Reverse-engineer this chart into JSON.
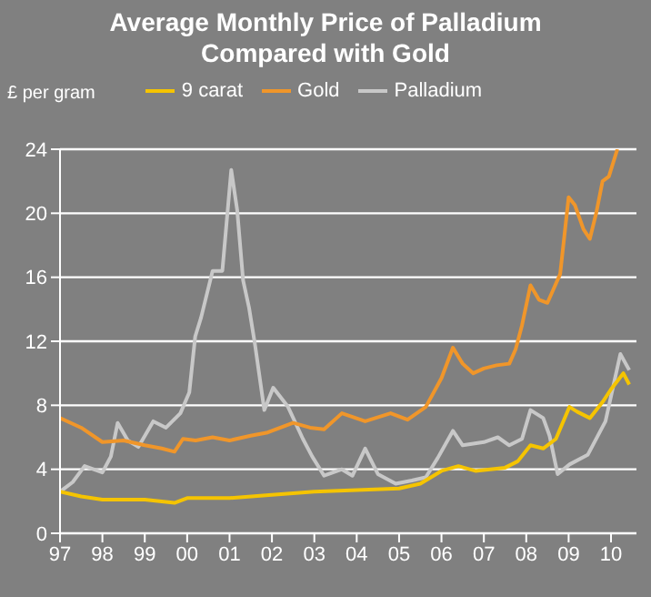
{
  "chart_data": {
    "type": "line",
    "title": "Average Monthly Price of Palladium\nCompared with Gold",
    "ylabel": "£ per gram",
    "xlim": [
      1997,
      2010.6
    ],
    "ylim": [
      0,
      24
    ],
    "yticks": [
      0,
      4,
      8,
      12,
      16,
      20,
      24
    ],
    "xticks": [
      {
        "value": 1997,
        "label": "97"
      },
      {
        "value": 1998,
        "label": "98"
      },
      {
        "value": 1999,
        "label": "99"
      },
      {
        "value": 2000,
        "label": "00"
      },
      {
        "value": 2001,
        "label": "01"
      },
      {
        "value": 2002,
        "label": "02"
      },
      {
        "value": 2003,
        "label": "03"
      },
      {
        "value": 2004,
        "label": "04"
      },
      {
        "value": 2005,
        "label": "05"
      },
      {
        "value": 2006,
        "label": "06"
      },
      {
        "value": 2007,
        "label": "07"
      },
      {
        "value": 2008,
        "label": "08"
      },
      {
        "value": 2009,
        "label": "09"
      },
      {
        "value": 2010,
        "label": "10"
      }
    ],
    "grid": "y",
    "legend": "top",
    "marker": "none",
    "line_style": "solid",
    "series": [
      {
        "name": "Palladium",
        "color": "#c8c8c8",
        "x": [
          1997,
          1997.3,
          1997.58,
          1998.0,
          1998.2,
          1998.36,
          1998.6,
          1998.85,
          1999.2,
          1999.5,
          1999.84,
          2000.05,
          2000.19,
          2000.33,
          2000.6,
          2000.83,
          2001.04,
          2001.18,
          2001.32,
          2001.46,
          2001.6,
          2001.82,
          2002.03,
          2002.38,
          2002.73,
          2002.95,
          2003.23,
          2003.65,
          2003.9,
          2004.2,
          2004.5,
          2004.92,
          2005.3,
          2005.63,
          2005.91,
          2006.27,
          2006.5,
          2007.0,
          2007.33,
          2007.6,
          2007.9,
          2008.1,
          2008.4,
          2008.55,
          2008.74,
          2009.02,
          2009.45,
          2009.87,
          2010.22,
          2010.43
        ],
        "values": [
          2.6,
          3.2,
          4.2,
          3.8,
          4.8,
          6.9,
          5.8,
          5.4,
          7.0,
          6.6,
          7.5,
          8.8,
          12.3,
          13.5,
          16.4,
          16.4,
          22.7,
          20.2,
          15.8,
          14.1,
          11.8,
          7.7,
          9.1,
          7.9,
          5.9,
          4.8,
          3.6,
          4.0,
          3.6,
          5.3,
          3.7,
          3.1,
          3.3,
          3.5,
          4.7,
          6.4,
          5.5,
          5.7,
          6.0,
          5.5,
          5.9,
          7.7,
          7.2,
          6.1,
          3.7,
          4.3,
          4.9,
          7.0,
          11.2,
          10.2
        ]
      },
      {
        "name": "Gold",
        "color": "#f0962a",
        "x": [
          1997,
          1997.5,
          1998.0,
          1998.5,
          1999.0,
          1999.4,
          1999.7,
          1999.9,
          2000.2,
          2000.6,
          2001.0,
          2001.5,
          2001.9,
          2002.5,
          2002.9,
          2003.23,
          2003.65,
          2004.2,
          2004.8,
          2005.2,
          2005.63,
          2006.0,
          2006.27,
          2006.5,
          2006.75,
          2007.0,
          2007.3,
          2007.6,
          2007.75,
          2007.9,
          2008.1,
          2008.3,
          2008.5,
          2008.65,
          2008.8,
          2009.0,
          2009.15,
          2009.35,
          2009.5,
          2009.65,
          2009.8,
          2009.95,
          2010.15
        ],
        "values": [
          7.2,
          6.6,
          5.7,
          5.8,
          5.5,
          5.3,
          5.1,
          5.9,
          5.8,
          6.0,
          5.8,
          6.1,
          6.3,
          6.9,
          6.6,
          6.5,
          7.5,
          7.0,
          7.5,
          7.1,
          7.9,
          9.7,
          11.6,
          10.6,
          10.0,
          10.3,
          10.5,
          10.6,
          11.5,
          13.0,
          15.5,
          14.6,
          14.4,
          15.3,
          16.2,
          21.0,
          20.5,
          19.0,
          18.4,
          20.0,
          22.0,
          22.3,
          24.0
        ]
      },
      {
        "name": "9 carat",
        "color": "#f5c400",
        "x": [
          1997,
          1997.5,
          1998,
          1999,
          1999.7,
          2000,
          2001,
          2002,
          2003,
          2004,
          2005,
          2005.5,
          2006,
          2006.4,
          2006.8,
          2007.5,
          2007.8,
          2008.1,
          2008.4,
          2008.7,
          2009.02,
          2009.2,
          2009.5,
          2009.8,
          2010.0,
          2010.29,
          2010.43
        ],
        "values": [
          2.6,
          2.3,
          2.1,
          2.1,
          1.9,
          2.2,
          2.2,
          2.4,
          2.6,
          2.7,
          2.8,
          3.1,
          3.9,
          4.2,
          3.9,
          4.1,
          4.5,
          5.5,
          5.3,
          5.9,
          7.9,
          7.6,
          7.2,
          8.2,
          9.0,
          10.0,
          9.3
        ]
      }
    ]
  }
}
